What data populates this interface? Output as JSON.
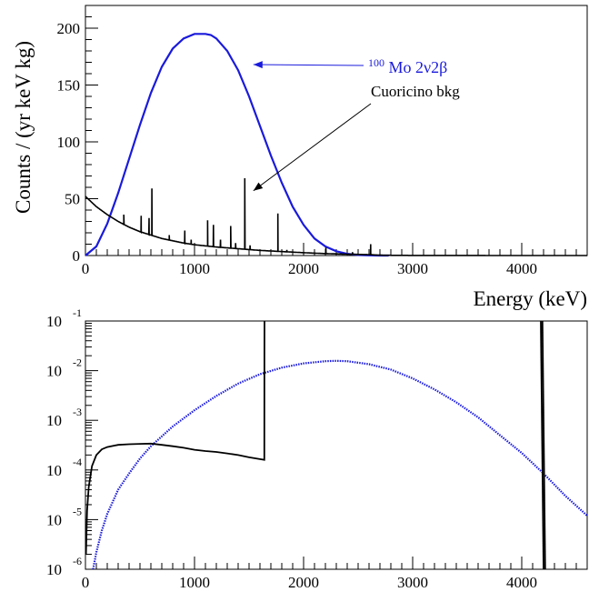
{
  "chart_data": [
    {
      "type": "line",
      "title": "",
      "xlabel": "Energy (keV)",
      "ylabel": "Counts / (yr keV kg)",
      "xlim": [
        0,
        4600
      ],
      "ylim": [
        0,
        220
      ],
      "x_ticks": [
        0,
        1000,
        2000,
        3000,
        4000
      ],
      "x_tick_labels": [
        "0",
        "1000",
        "2000",
        "3000",
        "4000"
      ],
      "y_ticks": [
        0,
        50,
        100,
        150,
        200
      ],
      "y_tick_labels": [
        "0",
        "50",
        "100",
        "150",
        "200"
      ],
      "grid": false,
      "series": [
        {
          "name": "100Mo 2ν2β",
          "label_super": "100",
          "label_main": "Mo 2ν2β",
          "color": "#1a1adc",
          "x": [
            0,
            100,
            200,
            300,
            400,
            500,
            600,
            700,
            800,
            900,
            1000,
            1100,
            1150,
            1200,
            1300,
            1400,
            1500,
            1600,
            1700,
            1800,
            1900,
            2000,
            2100,
            2200,
            2300,
            2400,
            2500,
            2600,
            2700,
            2780
          ],
          "y": [
            0,
            8,
            28,
            55,
            85,
            115,
            143,
            166,
            182,
            191,
            195,
            195,
            194,
            191,
            180,
            163,
            140,
            114,
            88,
            64,
            43,
            27,
            15,
            8,
            3.8,
            1.5,
            0.5,
            0.15,
            0.03,
            0
          ]
        },
        {
          "name": "Cuoricino bkg",
          "color": "#000000",
          "continuum_x": [
            0,
            100,
            200,
            300,
            400,
            500,
            600,
            700,
            800,
            900,
            1000,
            1200,
            1400,
            1600,
            1800,
            2000,
            2200,
            2400,
            2600,
            2700,
            2800,
            3000,
            3500,
            4000,
            4600
          ],
          "continuum_y": [
            52,
            43,
            36,
            30,
            25,
            21,
            18,
            15,
            13,
            11,
            9.5,
            7.5,
            6,
            4.5,
            3.5,
            2.5,
            1.7,
            1.2,
            0.8,
            0.3,
            0.2,
            0.1,
            0.05,
            0.02,
            0.01
          ],
          "peaks_x": [
            352,
            511,
            583,
            609,
            768,
            911,
            969,
            1120,
            1173,
            1238,
            1332,
            1377,
            1461,
            1509,
            1764,
            1847,
            2204,
            2448,
            2615
          ],
          "peaks_y": [
            36,
            35,
            33,
            59,
            18,
            22,
            14,
            31,
            27,
            14,
            26,
            11,
            68,
            9,
            37,
            5,
            7,
            3,
            10
          ]
        }
      ],
      "annotations": [
        {
          "text": "100Mo 2ν2β",
          "arrow_to": [
            1540,
            168
          ]
        },
        {
          "text": "Cuoricino bkg",
          "arrow_to": [
            1540,
            57
          ]
        }
      ]
    },
    {
      "type": "line",
      "title": "",
      "xlabel": "",
      "ylabel": "",
      "yscale": "log",
      "xlim": [
        0,
        4600
      ],
      "ylim": [
        1e-06,
        0.1
      ],
      "x_ticks": [
        0,
        1000,
        2000,
        3000,
        4000
      ],
      "x_tick_labels": [
        "0",
        "1000",
        "2000",
        "3000",
        "4000"
      ],
      "y_ticks": [
        -6,
        -5,
        -4,
        -3,
        -2,
        -1
      ],
      "y_tick_base": "10",
      "y_tick_exponents": [
        "-6",
        "-5",
        "-4",
        "-3",
        "-2",
        "-1"
      ],
      "grid": false,
      "series": [
        {
          "name": "",
          "color": "#1a1adc",
          "style": "dotted",
          "x": [
            70,
            100,
            150,
            200,
            300,
            400,
            500,
            600,
            800,
            1000,
            1200,
            1400,
            1600,
            1800,
            2000,
            2200,
            2300,
            2400,
            2600,
            2800,
            3000,
            3200,
            3400,
            3600,
            3800,
            4000,
            4200,
            4400,
            4600
          ],
          "y": [
            1e-06,
            2.2e-06,
            6e-06,
            1.3e-05,
            4e-05,
            8.5e-05,
            0.00017,
            0.0003,
            0.00075,
            0.0016,
            0.0031,
            0.0055,
            0.0085,
            0.0115,
            0.014,
            0.0155,
            0.0158,
            0.0155,
            0.0135,
            0.0105,
            0.007,
            0.0042,
            0.0023,
            0.00115,
            0.0005,
            0.00022,
            8.5e-05,
            3e-05,
            1.2e-05
          ]
        },
        {
          "name": "",
          "color": "#000000",
          "x": [
            5,
            15,
            30,
            60,
            100,
            150,
            200,
            300,
            400,
            500,
            600,
            700,
            800,
            900,
            1000,
            1100,
            1200,
            1300,
            1400,
            1500,
            1600,
            1640,
            1641,
            1642
          ],
          "y": [
            2e-06,
            1.5e-05,
            4.5e-05,
            0.00012,
            0.0002,
            0.00026,
            0.00029,
            0.00032,
            0.00033,
            0.000335,
            0.00034,
            0.00032,
            0.0003,
            0.00028,
            0.000255,
            0.00024,
            0.00023,
            0.000215,
            0.0002,
            0.00018,
            0.000165,
            0.00016,
            0.02,
            0.1
          ]
        },
        {
          "name": "",
          "color": "#000000",
          "x": [
            4175,
            4200
          ],
          "y": [
            0.1,
            1e-06
          ]
        },
        {
          "name": "",
          "color": "#000000",
          "x": [
            4190,
            4215
          ],
          "y": [
            0.1,
            1e-06
          ]
        }
      ]
    }
  ]
}
